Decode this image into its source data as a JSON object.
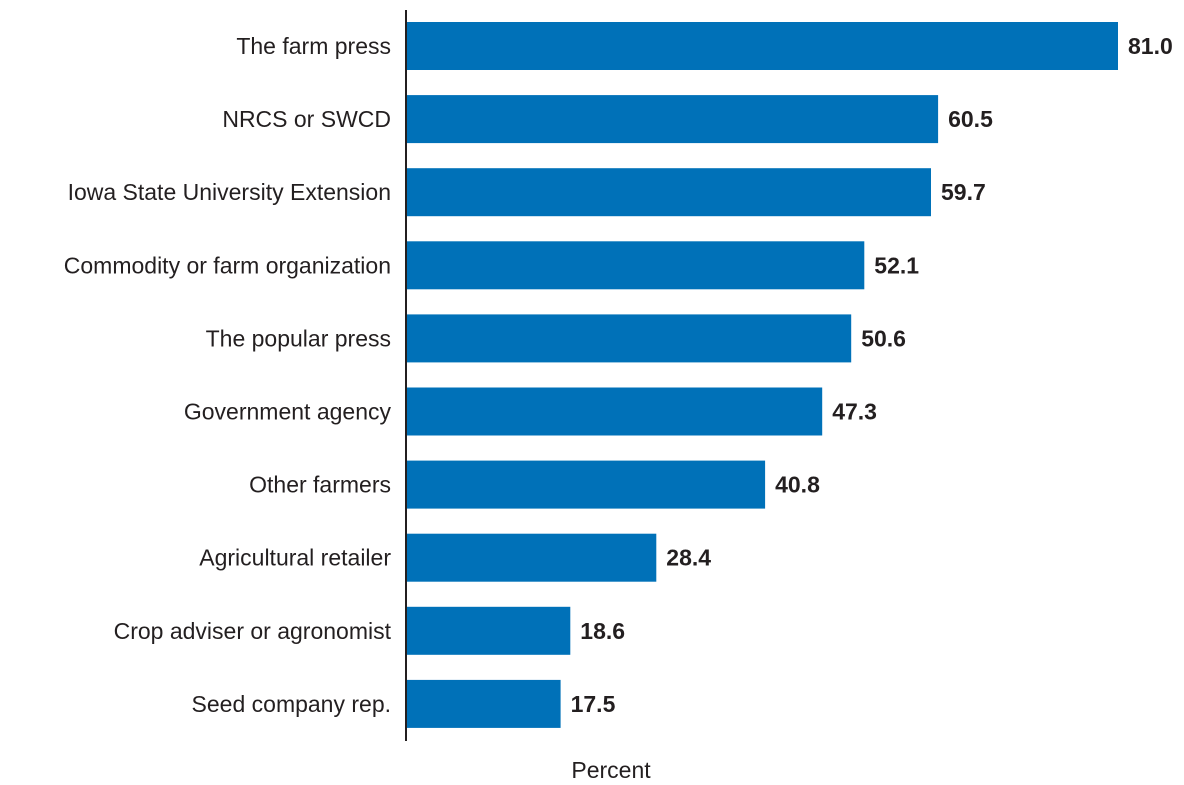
{
  "chart_data": {
    "type": "bar",
    "orientation": "horizontal",
    "categories": [
      "The farm press",
      "NRCS or SWCD",
      "Iowa State University Extension",
      "Commodity or farm organization",
      "The popular press",
      "Government agency",
      "Other farmers",
      "Agricultural retailer",
      "Crop adviser or agronomist",
      "Seed company rep."
    ],
    "values": [
      81.0,
      60.5,
      59.7,
      52.1,
      50.6,
      47.3,
      40.8,
      28.4,
      18.6,
      17.5
    ],
    "value_labels": [
      "81.0",
      "60.5",
      "59.7",
      "52.1",
      "50.6",
      "47.3",
      "40.8",
      "28.4",
      "18.6",
      "17.5"
    ],
    "xlabel": "Percent",
    "xlim": [
      0,
      81.0
    ],
    "bar_color": "#0071b8",
    "grid": false,
    "legend": "none"
  }
}
